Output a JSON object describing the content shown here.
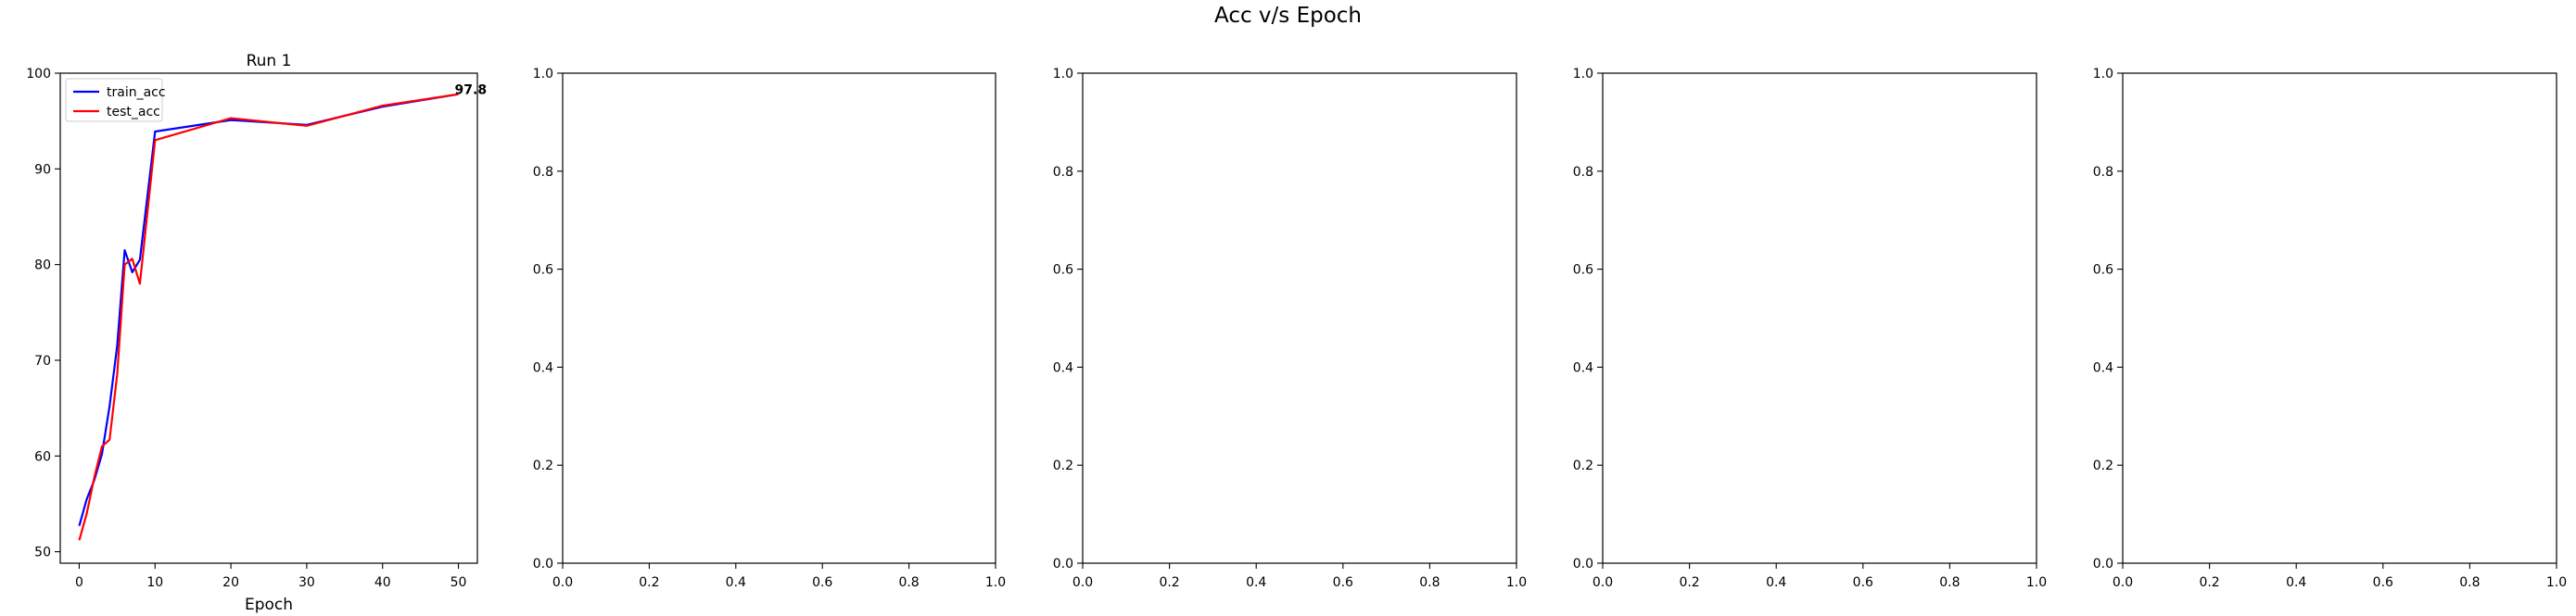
{
  "figure": {
    "suptitle": "Acc v/s Epoch"
  },
  "chart_data": [
    {
      "type": "line",
      "title": "Run 1",
      "xlabel": "Epoch",
      "ylabel": "",
      "xlim": [
        -2.5,
        52.5
      ],
      "ylim": [
        48.8,
        100
      ],
      "xticks": [
        0,
        10,
        20,
        30,
        40,
        50
      ],
      "yticks": [
        50,
        60,
        70,
        80,
        90,
        100
      ],
      "grid": false,
      "legend": "top-left",
      "series": [
        {
          "name": "train_acc",
          "color": "#0000ff",
          "x": [
            0,
            1,
            2,
            3,
            4,
            5,
            6,
            7,
            8,
            10,
            20,
            30,
            40,
            50
          ],
          "y": [
            52.7,
            55.5,
            57.5,
            60.2,
            65.2,
            71.5,
            81.5,
            79.2,
            80.5,
            93.9,
            95.1,
            94.6,
            96.5,
            97.8
          ]
        },
        {
          "name": "test_acc",
          "color": "#ff0000",
          "x": [
            0,
            1,
            2,
            3,
            4,
            5,
            6,
            7,
            8,
            10,
            20,
            30,
            40,
            50
          ],
          "y": [
            51.2,
            54.0,
            57.8,
            61.0,
            61.7,
            68.5,
            80.0,
            80.6,
            78.0,
            93.0,
            95.3,
            94.5,
            96.6,
            97.8
          ]
        }
      ],
      "annotations": [
        {
          "text": "97.8",
          "x": 50,
          "y": 97.8
        }
      ]
    },
    {
      "type": "line",
      "title": "",
      "xlim": [
        0,
        1
      ],
      "ylim": [
        0,
        1
      ],
      "xticks": [
        "0.0",
        "0.2",
        "0.4",
        "0.6",
        "0.8",
        "1.0"
      ],
      "yticks": [
        "0.0",
        "0.2",
        "0.4",
        "0.6",
        "0.8",
        "1.0"
      ],
      "series": []
    },
    {
      "type": "line",
      "title": "",
      "xlim": [
        0,
        1
      ],
      "ylim": [
        0,
        1
      ],
      "xticks": [
        "0.0",
        "0.2",
        "0.4",
        "0.6",
        "0.8",
        "1.0"
      ],
      "yticks": [
        "0.0",
        "0.2",
        "0.4",
        "0.6",
        "0.8",
        "1.0"
      ],
      "series": []
    },
    {
      "type": "line",
      "title": "",
      "xlim": [
        0,
        1
      ],
      "ylim": [
        0,
        1
      ],
      "xticks": [
        "0.0",
        "0.2",
        "0.4",
        "0.6",
        "0.8",
        "1.0"
      ],
      "yticks": [
        "0.0",
        "0.2",
        "0.4",
        "0.6",
        "0.8",
        "1.0"
      ],
      "series": []
    },
    {
      "type": "line",
      "title": "",
      "xlim": [
        0,
        1
      ],
      "ylim": [
        0,
        1
      ],
      "xticks": [
        "0.0",
        "0.2",
        "0.4",
        "0.6",
        "0.8",
        "1.0"
      ],
      "yticks": [
        "0.0",
        "0.2",
        "0.4",
        "0.6",
        "0.8",
        "1.0"
      ],
      "series": []
    }
  ]
}
